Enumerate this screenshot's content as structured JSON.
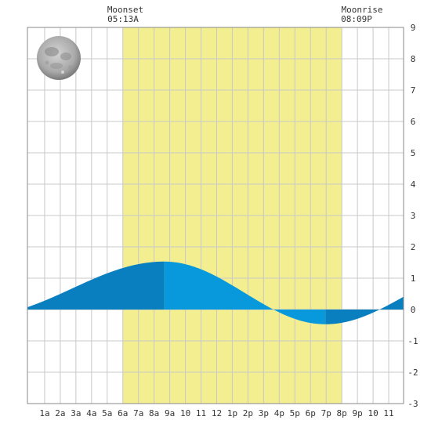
{
  "moonset": {
    "label": "Moonset",
    "time": "05:13A"
  },
  "moonrise": {
    "label": "Moonrise",
    "time": "08:09P"
  },
  "chart_data": {
    "type": "area",
    "x_tick_labels": [
      "1a",
      "2a",
      "3a",
      "4a",
      "5a",
      "6a",
      "7a",
      "8a",
      "9a",
      "10",
      "11",
      "12",
      "1p",
      "2p",
      "3p",
      "4p",
      "5p",
      "6p",
      "7p",
      "8p",
      "9p",
      "10",
      "11"
    ],
    "x_range_hours": [
      -0.1,
      23.95
    ],
    "ylim": [
      -3,
      9
    ],
    "y_tick_labels": [
      "-3",
      "-2",
      "-1",
      "0",
      "1",
      "2",
      "3",
      "4",
      "5",
      "6",
      "7",
      "8",
      "9"
    ],
    "grid": true,
    "daylight_band_hours": [
      6.0,
      20.0
    ],
    "tide_curve": {
      "low_before": {
        "hour": -3.2,
        "height": -0.2
      },
      "high": {
        "hour": 8.65,
        "height": 1.53
      },
      "low": {
        "hour": 18.95,
        "height": -0.47
      },
      "high_after": {
        "hour": 29.0,
        "height": 1.3
      }
    },
    "colors": {
      "night_fill": "#0a7fbf",
      "day_fill": "#0799dc",
      "daylight": "#f3ee8f",
      "grid": "#c8c8c8",
      "background": "#ffffff"
    }
  }
}
